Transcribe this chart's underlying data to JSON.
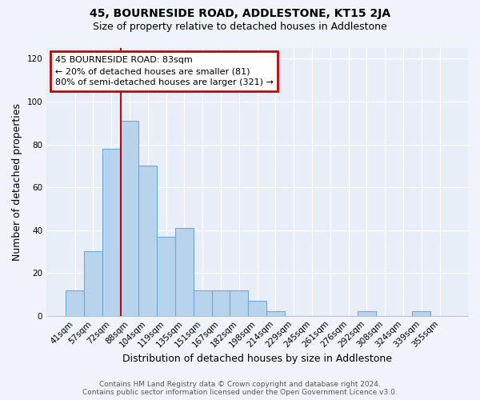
{
  "title": "45, BOURNESIDE ROAD, ADDLESTONE, KT15 2JA",
  "subtitle": "Size of property relative to detached houses in Addlestone",
  "xlabel": "Distribution of detached houses by size in Addlestone",
  "ylabel": "Number of detached properties",
  "bar_labels": [
    "41sqm",
    "57sqm",
    "72sqm",
    "88sqm",
    "104sqm",
    "119sqm",
    "135sqm",
    "151sqm",
    "167sqm",
    "182sqm",
    "198sqm",
    "214sqm",
    "229sqm",
    "245sqm",
    "261sqm",
    "276sqm",
    "292sqm",
    "308sqm",
    "324sqm",
    "339sqm",
    "355sqm"
  ],
  "bar_values": [
    12,
    30,
    78,
    91,
    70,
    37,
    41,
    12,
    12,
    12,
    7,
    2,
    0,
    0,
    0,
    0,
    2,
    0,
    0,
    2,
    0
  ],
  "bar_color": "#b8d4ed",
  "bar_edge_color": "#6aaad4",
  "ylim": [
    0,
    125
  ],
  "yticks": [
    0,
    20,
    40,
    60,
    80,
    100,
    120
  ],
  "annotation_title": "45 BOURNESIDE ROAD: 83sqm",
  "annotation_line1": "← 20% of detached houses are smaller (81)",
  "annotation_line2": "80% of semi-detached houses are larger (321) →",
  "annotation_box_color": "#ffffff",
  "annotation_box_edge": "#cc0000",
  "red_line_color": "#cc0000",
  "footer_line1": "Contains HM Land Registry data © Crown copyright and database right 2024.",
  "footer_line2": "Contains public sector information licensed under the Open Government Licence v3.0.",
  "background_color": "#f0f4fa",
  "plot_bg_color": "#e8eef8",
  "grid_color": "#ffffff",
  "title_fontsize": 10,
  "subtitle_fontsize": 9,
  "axis_label_fontsize": 9,
  "tick_fontsize": 7.5,
  "annotation_fontsize": 8,
  "footer_fontsize": 6.5
}
